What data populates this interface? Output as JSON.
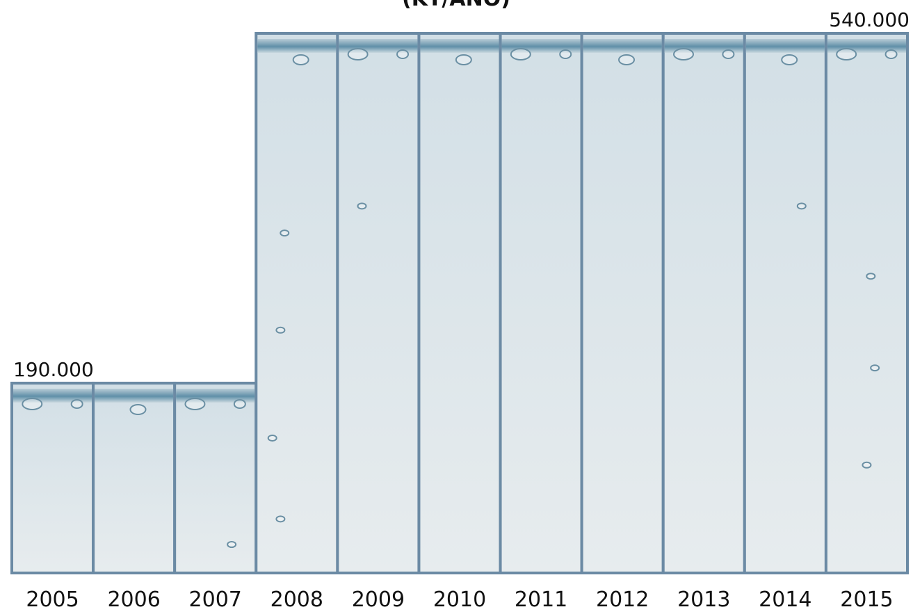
{
  "chart_data": {
    "type": "bar",
    "title": "(KT/ANO)",
    "categories": [
      "2005",
      "2006",
      "2007",
      "2008",
      "2009",
      "2010",
      "2011",
      "2012",
      "2013",
      "2014",
      "2015"
    ],
    "values": [
      190000,
      190000,
      190000,
      540000,
      540000,
      540000,
      540000,
      540000,
      540000,
      540000,
      540000
    ],
    "data_labels": [
      {
        "category": "2005",
        "text": "190.000"
      },
      {
        "category": "2015",
        "text": "540.000"
      }
    ],
    "ylim": [
      0,
      540000
    ],
    "xlabel": "",
    "ylabel": "",
    "grid": false,
    "legend": "none",
    "colors": {
      "bar_fill_top": "#cfdde4",
      "bar_fill_bottom": "#e6eced",
      "bar_stroke": "#6b8aa4",
      "surface": "#5f8fa8"
    }
  }
}
